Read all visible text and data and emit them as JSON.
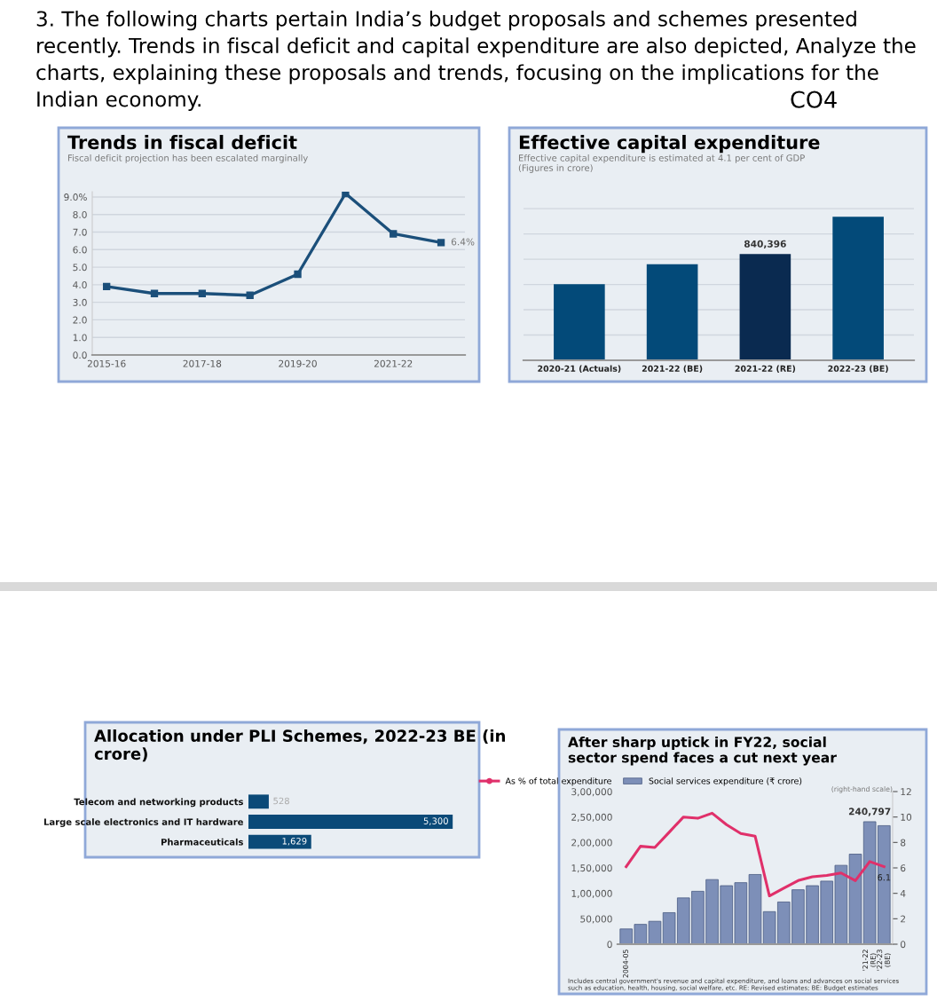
{
  "chart_data": [
    {
      "type": "other",
      "annotations": [
        "3. The following charts pertain India’s budget proposals and schemes presented recently. Trends in fiscal deficit and capital expenditure are also depicted, Analyze the charts, explaining these proposals and trends, focusing on the implications for the Indian economy.",
        "CO4"
      ]
    },
    {
      "type": "line",
      "title": "Trends in fiscal deficit",
      "subtitle": "Fiscal deficit projection has been escalated marginally",
      "categories": [
        "2015-16",
        null,
        "2017-18",
        null,
        "2019-20",
        null,
        "2021-22",
        null
      ],
      "values": [
        3.9,
        3.5,
        3.5,
        3.4,
        4.6,
        9.2,
        6.9,
        6.4
      ],
      "color": "#1b4f7a",
      "marker": "square",
      "ylim": [
        0,
        9.3
      ],
      "yticks": [
        {
          "value": 0,
          "label": "0.0"
        },
        {
          "value": 1,
          "label": "1.0"
        },
        {
          "value": 2,
          "label": "2.0"
        },
        {
          "value": 3,
          "label": "3.0"
        },
        {
          "value": 4,
          "label": "4.0"
        },
        {
          "value": 5,
          "label": "5.0"
        },
        {
          "value": 6,
          "label": "6.0"
        },
        {
          "value": 7,
          "label": "7.0"
        },
        {
          "value": 8,
          "label": "8.0"
        },
        {
          "value": 9,
          "label": "9.0%"
        }
      ],
      "grid": "y",
      "annotations": [
        "6.4%"
      ]
    },
    {
      "type": "bar",
      "title": "Effective capital expenditure",
      "subtitle": "Effective capital expenditure is estimated at 4.1 per cent of GDP\n(Figures in crore)",
      "categories": [
        "2020-21 (Actuals)",
        "2021-22 (BE)",
        "2021-22 (RE)",
        "2022-23 (BE)"
      ],
      "values": [
        602000,
        761000,
        840396,
        1136000
      ],
      "colors": [
        "#034a79",
        "#034a79",
        "#0a2a50",
        "#034a79"
      ],
      "value_labels": [
        null,
        null,
        "840,396",
        null
      ],
      "grid": "y"
    },
    {
      "type": "bar",
      "orientation": "horizontal",
      "title": "Allocation under PLI Schemes, 2022-23 BE (in\ncrore)",
      "categories": [
        "Telecom and networking products",
        "Large scale electronics and IT hardware",
        "Pharmaceuticals"
      ],
      "values": [
        528,
        5300,
        1629
      ],
      "color": "#0b4a78",
      "value_labels": [
        "528",
        "5,300",
        "1,629"
      ]
    },
    {
      "type": "bar",
      "title": "After sharp uptick in FY22, social\nsector spend faces a cut next year",
      "categories": [
        "2004-05",
        null,
        null,
        null,
        null,
        null,
        null,
        null,
        null,
        null,
        null,
        null,
        null,
        null,
        null,
        null,
        null,
        "'21-22\n(RE)",
        "'22-23\n(BE)"
      ],
      "series": [
        {
          "type": "bar",
          "name": "Social services expenditure (₹ crore)",
          "color": "#7d8fb8",
          "values": [
            30000,
            39000,
            45000,
            62000,
            91000,
            104000,
            127000,
            115000,
            121000,
            137000,
            64000,
            83000,
            107000,
            115000,
            124000,
            155000,
            177000,
            240797,
            233000
          ],
          "value_labels": [
            null,
            null,
            null,
            null,
            null,
            null,
            null,
            null,
            null,
            null,
            null,
            null,
            null,
            null,
            null,
            null,
            null,
            "240,797",
            null
          ]
        },
        {
          "type": "line",
          "axis": "y2",
          "name": "As % of total expenditure",
          "color": "#e0306a",
          "values": [
            6.1,
            7.7,
            7.6,
            8.8,
            10.0,
            9.9,
            10.3,
            9.4,
            8.7,
            8.5,
            3.8,
            4.4,
            5.0,
            5.3,
            5.4,
            5.6,
            5.0,
            6.5,
            6.1
          ],
          "value_labels": [
            null,
            null,
            null,
            null,
            null,
            null,
            null,
            null,
            null,
            null,
            null,
            null,
            null,
            null,
            null,
            null,
            null,
            null,
            "6.1"
          ]
        }
      ],
      "ylim": [
        0,
        300000
      ],
      "yticks": [
        0,
        {
          "value": 50000,
          "label": "50,000"
        },
        {
          "value": 100000,
          "label": "1,00,000"
        },
        {
          "value": 150000,
          "label": "1,50,000"
        },
        {
          "value": 200000,
          "label": "2,00,000"
        },
        {
          "value": 250000,
          "label": "2,50,000"
        },
        {
          "value": 300000,
          "label": "3,00,000"
        }
      ],
      "y2lim": [
        0,
        12
      ],
      "y2ticks": [
        0,
        2,
        4,
        6,
        8,
        10,
        12
      ],
      "legend": "top",
      "annotations": [
        "(right-hand scale)",
        "Includes central government's revenue and capital expenditure, and loans and advances on social services\nsuch as education, health, housing, social welfare, etc. RE: Revised estimates; BE: Budget estimates"
      ]
    }
  ]
}
